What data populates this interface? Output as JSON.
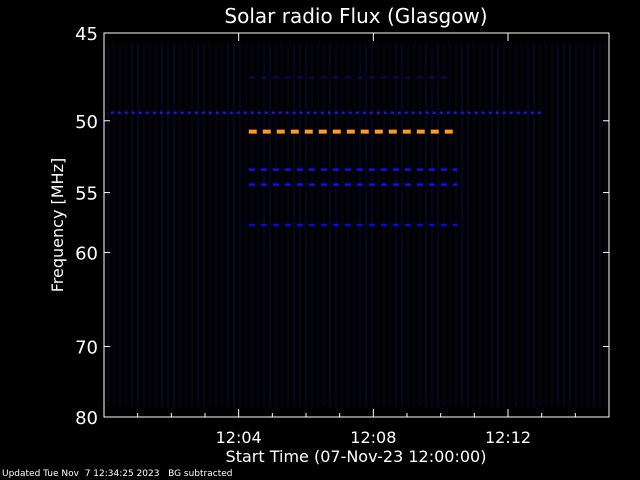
{
  "chart_data": {
    "type": "heatmap",
    "title": "Solar radio Flux (Glasgow)",
    "xlabel": "Start Time (07-Nov-23 12:00:00)",
    "ylabel": "Frequency [MHz]",
    "xlim_minutes": [
      0,
      15
    ],
    "ylim": [
      45,
      80
    ],
    "y_ticks": [
      "45",
      "50",
      "55",
      "60",
      "70",
      "80"
    ],
    "y_tick_values": [
      45,
      50,
      55,
      60,
      70,
      80
    ],
    "x_ticks": [
      "12:04",
      "12:08",
      "12:12"
    ],
    "x_tick_minutes": [
      4,
      8,
      12
    ],
    "background_color": "#000000",
    "emission_bands": [
      {
        "freq_mhz": 49.5,
        "start_min": 0.2,
        "end_min": 13.0,
        "color": "#1a1acc",
        "level": "weak"
      },
      {
        "freq_mhz": 47.4,
        "start_min": 4.3,
        "end_min": 10.3,
        "color": "#0a0a55",
        "level": "faint"
      },
      {
        "freq_mhz": 50.7,
        "start_min": 4.3,
        "end_min": 10.5,
        "color": "#ff9a20",
        "level": "strong"
      },
      {
        "freq_mhz": 53.3,
        "start_min": 4.3,
        "end_min": 10.5,
        "color": "#1010ee",
        "level": "moderate"
      },
      {
        "freq_mhz": 54.4,
        "start_min": 4.3,
        "end_min": 10.5,
        "color": "#1010ee",
        "level": "moderate"
      },
      {
        "freq_mhz": 57.6,
        "start_min": 4.3,
        "end_min": 10.5,
        "color": "#0a0acc",
        "level": "moderate"
      }
    ]
  },
  "footer": {
    "updated": "Updated Tue Nov  7 12:34:25 2023",
    "note": "BG subtracted"
  }
}
